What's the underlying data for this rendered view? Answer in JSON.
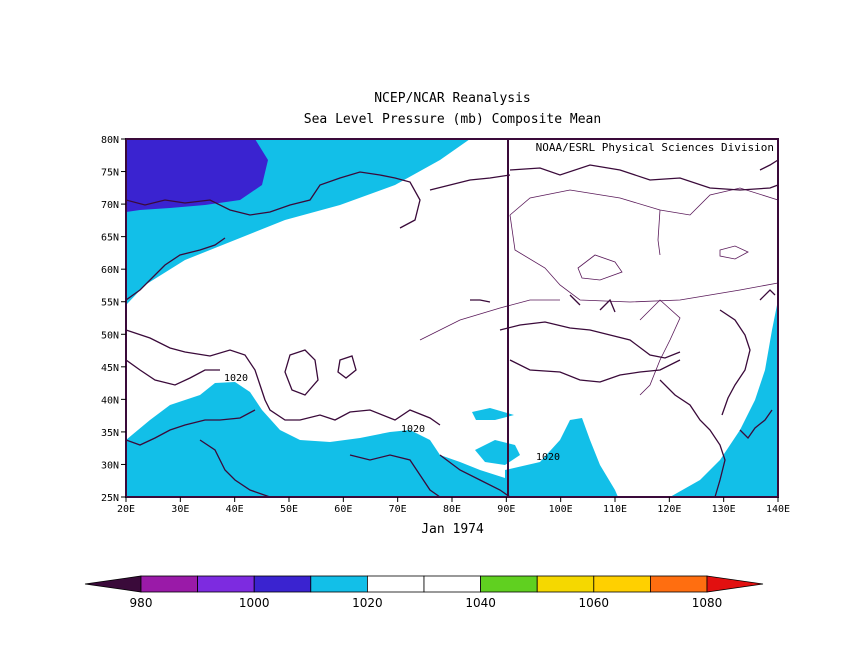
{
  "title": "NCEP/NCAR Reanalysis",
  "subtitle": "Sea Level Pressure (mb) Composite Mean",
  "credit": "NOAA/ESRL Physical Sciences Division",
  "date_label": "Jan 1974",
  "contour_labels": [
    "1020",
    "1020",
    "1020"
  ],
  "lat_ticks": [
    "80N",
    "75N",
    "70N",
    "65N",
    "60N",
    "55N",
    "50N",
    "45N",
    "40N",
    "35N",
    "30N",
    "25N"
  ],
  "lon_ticks": [
    "20E",
    "30E",
    "40E",
    "50E",
    "60E",
    "70E",
    "80E",
    "90E",
    "100E",
    "110E",
    "120E",
    "130E",
    "140E"
  ],
  "colorbar": {
    "labels": [
      "980",
      "1000",
      "1020",
      "1040",
      "1060",
      "1080"
    ],
    "colors": [
      "#3a0a3a",
      "#9a1aa8",
      "#7d2be0",
      "#3a23d0",
      "#12bfe8",
      "#ffffff",
      "#ffffff",
      "#60d020",
      "#f5d800",
      "#ffd000",
      "#ff6e10",
      "#e21010"
    ]
  },
  "colors": {
    "light_blue": "#12bfe8",
    "dark_blue": "#3a23d0",
    "coast": "#3a0a3a"
  }
}
